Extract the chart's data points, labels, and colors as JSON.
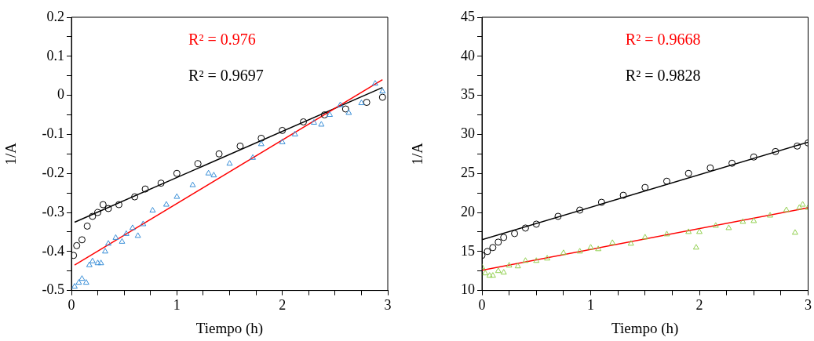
{
  "chart_data": [
    {
      "type": "scatter",
      "xlabel": "Tiempo (h)",
      "ylabel": "1/A",
      "xlim": [
        0,
        3
      ],
      "ylim": [
        -0.5,
        0.2
      ],
      "xticks": [
        0,
        {
          "value": 0.25,
          "label": null
        },
        {
          "value": 0.5,
          "label": null
        },
        {
          "value": 0.75,
          "label": null
        },
        1,
        {
          "value": 1.25,
          "label": null
        },
        {
          "value": 1.5,
          "label": null
        },
        {
          "value": 1.75,
          "label": null
        },
        2,
        {
          "value": 2.25,
          "label": null
        },
        {
          "value": 2.5,
          "label": null
        },
        {
          "value": 2.75,
          "label": null
        },
        3
      ],
      "yticks": [
        -0.5,
        {
          "value": -0.45,
          "label": null
        },
        -0.4,
        {
          "value": -0.35,
          "label": null
        },
        -0.3,
        {
          "value": -0.25,
          "label": null
        },
        -0.2,
        {
          "value": -0.15,
          "label": null
        },
        -0.1,
        {
          "value": -0.05,
          "label": null
        },
        0,
        {
          "value": 0.05,
          "label": null
        },
        0.1,
        {
          "value": 0.15,
          "label": null
        },
        0.2
      ],
      "grid": false,
      "legend": false,
      "annotations": [
        "R² = 0.976",
        "R² = 0.9697"
      ],
      "series": [
        {
          "type": "scatter",
          "marker": "triangle",
          "color": "#3a8fd8",
          "x": [
            0.03,
            0.07,
            0.1,
            0.14,
            0.17,
            0.2,
            0.25,
            0.28,
            0.32,
            0.35,
            0.42,
            0.48,
            0.52,
            0.58,
            0.63,
            0.68,
            0.77,
            0.9,
            1.0,
            1.15,
            1.3,
            1.35,
            1.5,
            1.72,
            1.8,
            2.0,
            2.12,
            2.3,
            2.37,
            2.45,
            2.55,
            2.63,
            2.75,
            2.88,
            2.95
          ],
          "values": [
            -0.49,
            -0.48,
            -0.47,
            -0.48,
            -0.435,
            -0.425,
            -0.43,
            -0.43,
            -0.4,
            -0.38,
            -0.365,
            -0.375,
            -0.355,
            -0.34,
            -0.36,
            -0.33,
            -0.295,
            -0.28,
            -0.26,
            -0.23,
            -0.2,
            -0.205,
            -0.175,
            -0.16,
            -0.125,
            -0.12,
            -0.1,
            -0.07,
            -0.075,
            -0.05,
            -0.025,
            -0.045,
            -0.02,
            0.03,
            0.01
          ]
        },
        {
          "type": "scatter",
          "marker": "circle",
          "color": "#000000",
          "x": [
            0.02,
            0.05,
            0.1,
            0.15,
            0.2,
            0.25,
            0.3,
            0.35,
            0.45,
            0.6,
            0.7,
            0.85,
            1.0,
            1.2,
            1.4,
            1.6,
            1.8,
            2.0,
            2.2,
            2.4,
            2.6,
            2.8,
            2.95
          ],
          "values": [
            -0.41,
            -0.385,
            -0.37,
            -0.335,
            -0.31,
            -0.3,
            -0.28,
            -0.29,
            -0.28,
            -0.26,
            -0.24,
            -0.225,
            -0.2,
            -0.175,
            -0.15,
            -0.13,
            -0.11,
            -0.09,
            -0.068,
            -0.05,
            -0.035,
            -0.018,
            -0.005
          ]
        },
        {
          "type": "line",
          "marker": "none",
          "color": "#ff0000",
          "x": [
            0.03,
            2.95
          ],
          "values": [
            -0.435,
            0.04
          ]
        },
        {
          "type": "line",
          "marker": "none",
          "color": "#000000",
          "x": [
            0.03,
            2.95
          ],
          "values": [
            -0.325,
            0.02
          ]
        }
      ]
    },
    {
      "type": "scatter",
      "xlabel": "Tiempo (h)",
      "ylabel": "1/A",
      "xlim": [
        0,
        3
      ],
      "ylim": [
        10,
        45
      ],
      "xticks": [
        0,
        {
          "value": 0.25,
          "label": null
        },
        {
          "value": 0.5,
          "label": null
        },
        {
          "value": 0.75,
          "label": null
        },
        1,
        {
          "value": 1.25,
          "label": null
        },
        {
          "value": 1.5,
          "label": null
        },
        {
          "value": 1.75,
          "label": null
        },
        2,
        {
          "value": 2.25,
          "label": null
        },
        {
          "value": 2.5,
          "label": null
        },
        {
          "value": 2.75,
          "label": null
        },
        3
      ],
      "yticks": [
        10,
        {
          "value": 12.5,
          "label": null
        },
        15,
        {
          "value": 17.5,
          "label": null
        },
        20,
        {
          "value": 22.5,
          "label": null
        },
        25,
        {
          "value": 27.5,
          "label": null
        },
        30,
        {
          "value": 32.5,
          "label": null
        },
        35,
        {
          "value": 37.5,
          "label": null
        },
        40,
        {
          "value": 42.5,
          "label": null
        },
        45
      ],
      "grid": false,
      "legend": false,
      "annotations": [
        "R² = 0.9668",
        "R² = 0.9828"
      ],
      "series": [
        {
          "type": "scatter",
          "marker": "triangle",
          "color": "#92d050",
          "x": [
            0,
            0.03,
            0.07,
            0.1,
            0.15,
            0.2,
            0.25,
            0.33,
            0.4,
            0.5,
            0.6,
            0.75,
            0.9,
            1.0,
            1.07,
            1.2,
            1.37,
            1.5,
            1.7,
            1.9,
            1.97,
            2.0,
            2.15,
            2.27,
            2.4,
            2.5,
            2.65,
            2.8,
            2.88,
            2.92,
            2.95,
            3.0
          ],
          "values": [
            13,
            12.2,
            11.9,
            11.9,
            12.5,
            12.3,
            13.2,
            13.1,
            13.8,
            13.8,
            14.1,
            14.8,
            15,
            15.5,
            15.3,
            16.1,
            16,
            16.8,
            17.2,
            17.5,
            15.5,
            17.5,
            18.3,
            18,
            18.8,
            18.9,
            19.6,
            20.3,
            17.4,
            20.6,
            21,
            20.6
          ]
        },
        {
          "type": "scatter",
          "marker": "circle",
          "color": "#000000",
          "x": [
            0,
            0.05,
            0.1,
            0.15,
            0.2,
            0.3,
            0.4,
            0.5,
            0.7,
            0.9,
            1.1,
            1.3,
            1.5,
            1.7,
            1.9,
            2.1,
            2.3,
            2.5,
            2.7,
            2.9,
            3.0
          ],
          "values": [
            14.5,
            15,
            15.5,
            16.2,
            16.8,
            17.3,
            18,
            18.5,
            19.5,
            20.3,
            21.3,
            22.2,
            23.2,
            24,
            25,
            25.7,
            26.3,
            27.1,
            27.8,
            28.5,
            28.9
          ]
        },
        {
          "type": "line",
          "marker": "none",
          "color": "#ff0000",
          "x": [
            0,
            3
          ],
          "values": [
            12.6,
            20.6
          ]
        },
        {
          "type": "line",
          "marker": "none",
          "color": "#000000",
          "x": [
            0,
            3
          ],
          "values": [
            16.5,
            29
          ]
        }
      ]
    }
  ]
}
